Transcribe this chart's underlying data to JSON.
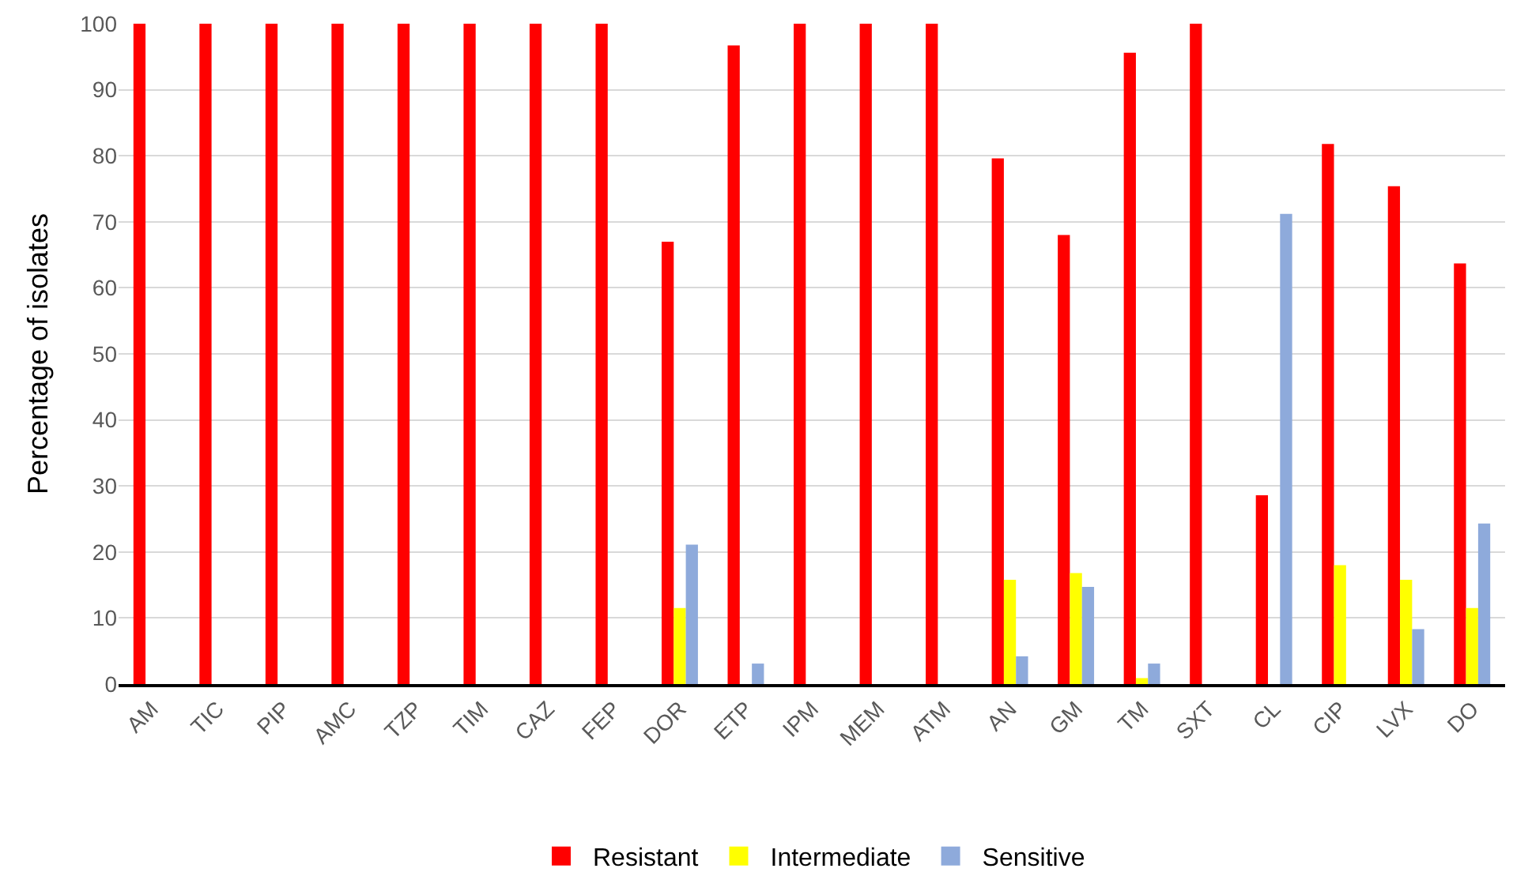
{
  "chart_data": {
    "type": "bar",
    "ylabel": "Percentage of isolates",
    "categories": [
      "AM",
      "TIC",
      "PIP",
      "AMC",
      "TZP",
      "TIM",
      "CAZ",
      "FEP",
      "DOR",
      "ETP",
      "IPM",
      "MEM",
      "ATM",
      "AN",
      "GM",
      "TM",
      "SXT",
      "CL",
      "CIP",
      "LVX",
      "DO"
    ],
    "series": [
      {
        "name": "Resistant",
        "color": "#ff0000",
        "values": [
          100,
          100,
          100,
          100,
          100,
          100,
          100,
          100,
          67,
          96.7,
          100,
          100,
          100,
          79.6,
          68,
          95.6,
          100,
          28.6,
          81.8,
          75.4,
          63.7
        ]
      },
      {
        "name": "Intermediate",
        "color": "#ffff00",
        "values": [
          0,
          0,
          0,
          0,
          0,
          0,
          0,
          0,
          11.5,
          0,
          0,
          0,
          0,
          15.8,
          16.8,
          0.9,
          0,
          0,
          18,
          15.8,
          11.5
        ]
      },
      {
        "name": "Sensitive",
        "color": "#8eaadb",
        "values": [
          0,
          0,
          0,
          0,
          0,
          0,
          0,
          0,
          21.1,
          3.1,
          0,
          0,
          0,
          4.2,
          14.7,
          3.1,
          0,
          71.2,
          0,
          8.3,
          24.3
        ]
      }
    ],
    "ylim": [
      0,
      100
    ],
    "yticks": [
      0,
      10,
      20,
      30,
      40,
      50,
      60,
      70,
      80,
      90,
      100
    ],
    "grid": "y",
    "legend": "bottom"
  }
}
